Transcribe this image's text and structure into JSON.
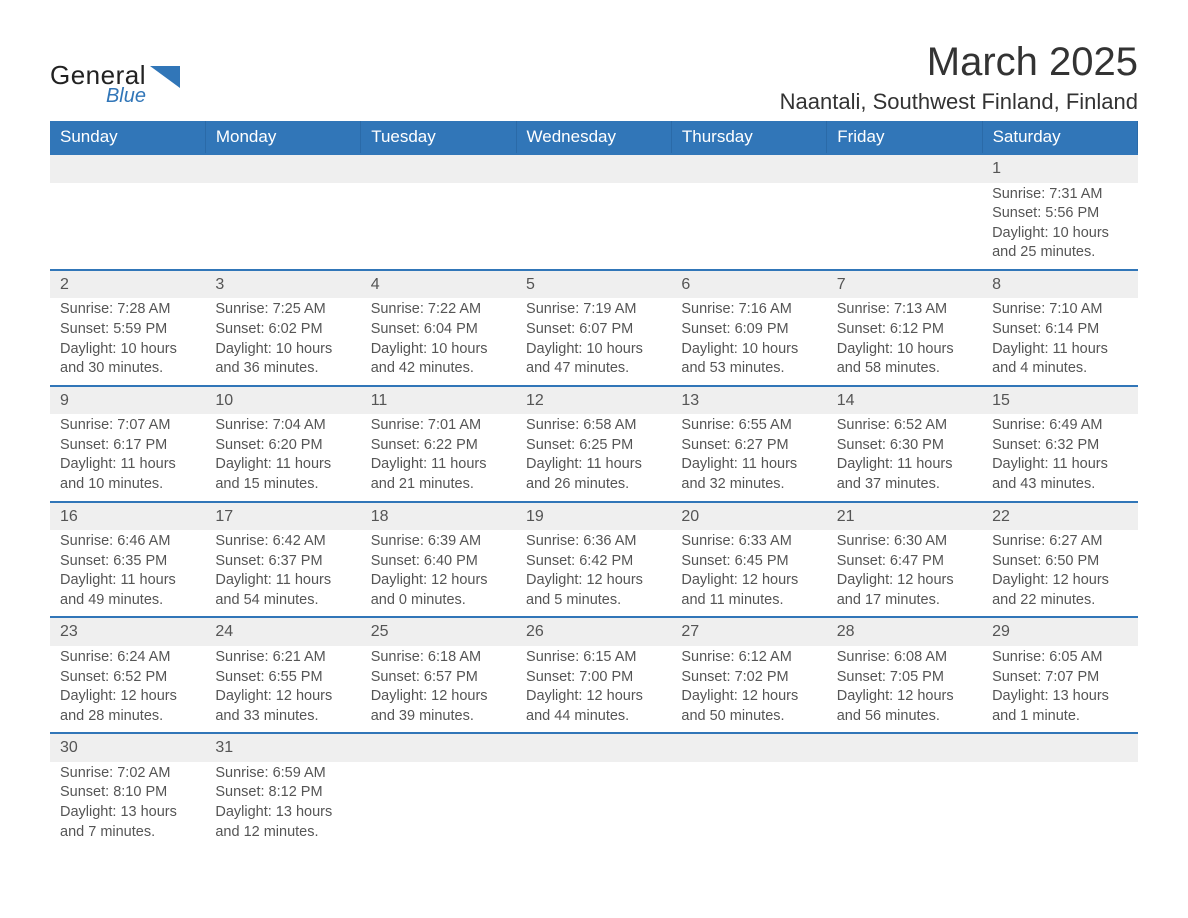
{
  "logo": {
    "word1": "General",
    "word2": "Blue"
  },
  "title": "March 2025",
  "location": "Naantali, Southwest Finland, Finland",
  "colors": {
    "header_bg": "#3176b8",
    "header_text": "#ffffff",
    "daynum_bg": "#efefef",
    "row_border": "#3176b8",
    "body_text": "#555555",
    "title_text": "#333333",
    "logo_blue": "#3176b8"
  },
  "typography": {
    "title_fontsize": 40,
    "location_fontsize": 22,
    "weekday_fontsize": 17,
    "daynum_fontsize": 16,
    "detail_fontsize": 14.5,
    "font_family": "Arial"
  },
  "weekdays": [
    "Sunday",
    "Monday",
    "Tuesday",
    "Wednesday",
    "Thursday",
    "Friday",
    "Saturday"
  ],
  "weeks": [
    [
      null,
      null,
      null,
      null,
      null,
      null,
      {
        "day": "1",
        "sunrise": "Sunrise: 7:31 AM",
        "sunset": "Sunset: 5:56 PM",
        "daylight": "Daylight: 10 hours and 25 minutes."
      }
    ],
    [
      {
        "day": "2",
        "sunrise": "Sunrise: 7:28 AM",
        "sunset": "Sunset: 5:59 PM",
        "daylight": "Daylight: 10 hours and 30 minutes."
      },
      {
        "day": "3",
        "sunrise": "Sunrise: 7:25 AM",
        "sunset": "Sunset: 6:02 PM",
        "daylight": "Daylight: 10 hours and 36 minutes."
      },
      {
        "day": "4",
        "sunrise": "Sunrise: 7:22 AM",
        "sunset": "Sunset: 6:04 PM",
        "daylight": "Daylight: 10 hours and 42 minutes."
      },
      {
        "day": "5",
        "sunrise": "Sunrise: 7:19 AM",
        "sunset": "Sunset: 6:07 PM",
        "daylight": "Daylight: 10 hours and 47 minutes."
      },
      {
        "day": "6",
        "sunrise": "Sunrise: 7:16 AM",
        "sunset": "Sunset: 6:09 PM",
        "daylight": "Daylight: 10 hours and 53 minutes."
      },
      {
        "day": "7",
        "sunrise": "Sunrise: 7:13 AM",
        "sunset": "Sunset: 6:12 PM",
        "daylight": "Daylight: 10 hours and 58 minutes."
      },
      {
        "day": "8",
        "sunrise": "Sunrise: 7:10 AM",
        "sunset": "Sunset: 6:14 PM",
        "daylight": "Daylight: 11 hours and 4 minutes."
      }
    ],
    [
      {
        "day": "9",
        "sunrise": "Sunrise: 7:07 AM",
        "sunset": "Sunset: 6:17 PM",
        "daylight": "Daylight: 11 hours and 10 minutes."
      },
      {
        "day": "10",
        "sunrise": "Sunrise: 7:04 AM",
        "sunset": "Sunset: 6:20 PM",
        "daylight": "Daylight: 11 hours and 15 minutes."
      },
      {
        "day": "11",
        "sunrise": "Sunrise: 7:01 AM",
        "sunset": "Sunset: 6:22 PM",
        "daylight": "Daylight: 11 hours and 21 minutes."
      },
      {
        "day": "12",
        "sunrise": "Sunrise: 6:58 AM",
        "sunset": "Sunset: 6:25 PM",
        "daylight": "Daylight: 11 hours and 26 minutes."
      },
      {
        "day": "13",
        "sunrise": "Sunrise: 6:55 AM",
        "sunset": "Sunset: 6:27 PM",
        "daylight": "Daylight: 11 hours and 32 minutes."
      },
      {
        "day": "14",
        "sunrise": "Sunrise: 6:52 AM",
        "sunset": "Sunset: 6:30 PM",
        "daylight": "Daylight: 11 hours and 37 minutes."
      },
      {
        "day": "15",
        "sunrise": "Sunrise: 6:49 AM",
        "sunset": "Sunset: 6:32 PM",
        "daylight": "Daylight: 11 hours and 43 minutes."
      }
    ],
    [
      {
        "day": "16",
        "sunrise": "Sunrise: 6:46 AM",
        "sunset": "Sunset: 6:35 PM",
        "daylight": "Daylight: 11 hours and 49 minutes."
      },
      {
        "day": "17",
        "sunrise": "Sunrise: 6:42 AM",
        "sunset": "Sunset: 6:37 PM",
        "daylight": "Daylight: 11 hours and 54 minutes."
      },
      {
        "day": "18",
        "sunrise": "Sunrise: 6:39 AM",
        "sunset": "Sunset: 6:40 PM",
        "daylight": "Daylight: 12 hours and 0 minutes."
      },
      {
        "day": "19",
        "sunrise": "Sunrise: 6:36 AM",
        "sunset": "Sunset: 6:42 PM",
        "daylight": "Daylight: 12 hours and 5 minutes."
      },
      {
        "day": "20",
        "sunrise": "Sunrise: 6:33 AM",
        "sunset": "Sunset: 6:45 PM",
        "daylight": "Daylight: 12 hours and 11 minutes."
      },
      {
        "day": "21",
        "sunrise": "Sunrise: 6:30 AM",
        "sunset": "Sunset: 6:47 PM",
        "daylight": "Daylight: 12 hours and 17 minutes."
      },
      {
        "day": "22",
        "sunrise": "Sunrise: 6:27 AM",
        "sunset": "Sunset: 6:50 PM",
        "daylight": "Daylight: 12 hours and 22 minutes."
      }
    ],
    [
      {
        "day": "23",
        "sunrise": "Sunrise: 6:24 AM",
        "sunset": "Sunset: 6:52 PM",
        "daylight": "Daylight: 12 hours and 28 minutes."
      },
      {
        "day": "24",
        "sunrise": "Sunrise: 6:21 AM",
        "sunset": "Sunset: 6:55 PM",
        "daylight": "Daylight: 12 hours and 33 minutes."
      },
      {
        "day": "25",
        "sunrise": "Sunrise: 6:18 AM",
        "sunset": "Sunset: 6:57 PM",
        "daylight": "Daylight: 12 hours and 39 minutes."
      },
      {
        "day": "26",
        "sunrise": "Sunrise: 6:15 AM",
        "sunset": "Sunset: 7:00 PM",
        "daylight": "Daylight: 12 hours and 44 minutes."
      },
      {
        "day": "27",
        "sunrise": "Sunrise: 6:12 AM",
        "sunset": "Sunset: 7:02 PM",
        "daylight": "Daylight: 12 hours and 50 minutes."
      },
      {
        "day": "28",
        "sunrise": "Sunrise: 6:08 AM",
        "sunset": "Sunset: 7:05 PM",
        "daylight": "Daylight: 12 hours and 56 minutes."
      },
      {
        "day": "29",
        "sunrise": "Sunrise: 6:05 AM",
        "sunset": "Sunset: 7:07 PM",
        "daylight": "Daylight: 13 hours and 1 minute."
      }
    ],
    [
      {
        "day": "30",
        "sunrise": "Sunrise: 7:02 AM",
        "sunset": "Sunset: 8:10 PM",
        "daylight": "Daylight: 13 hours and 7 minutes."
      },
      {
        "day": "31",
        "sunrise": "Sunrise: 6:59 AM",
        "sunset": "Sunset: 8:12 PM",
        "daylight": "Daylight: 13 hours and 12 minutes."
      },
      null,
      null,
      null,
      null,
      null
    ]
  ]
}
